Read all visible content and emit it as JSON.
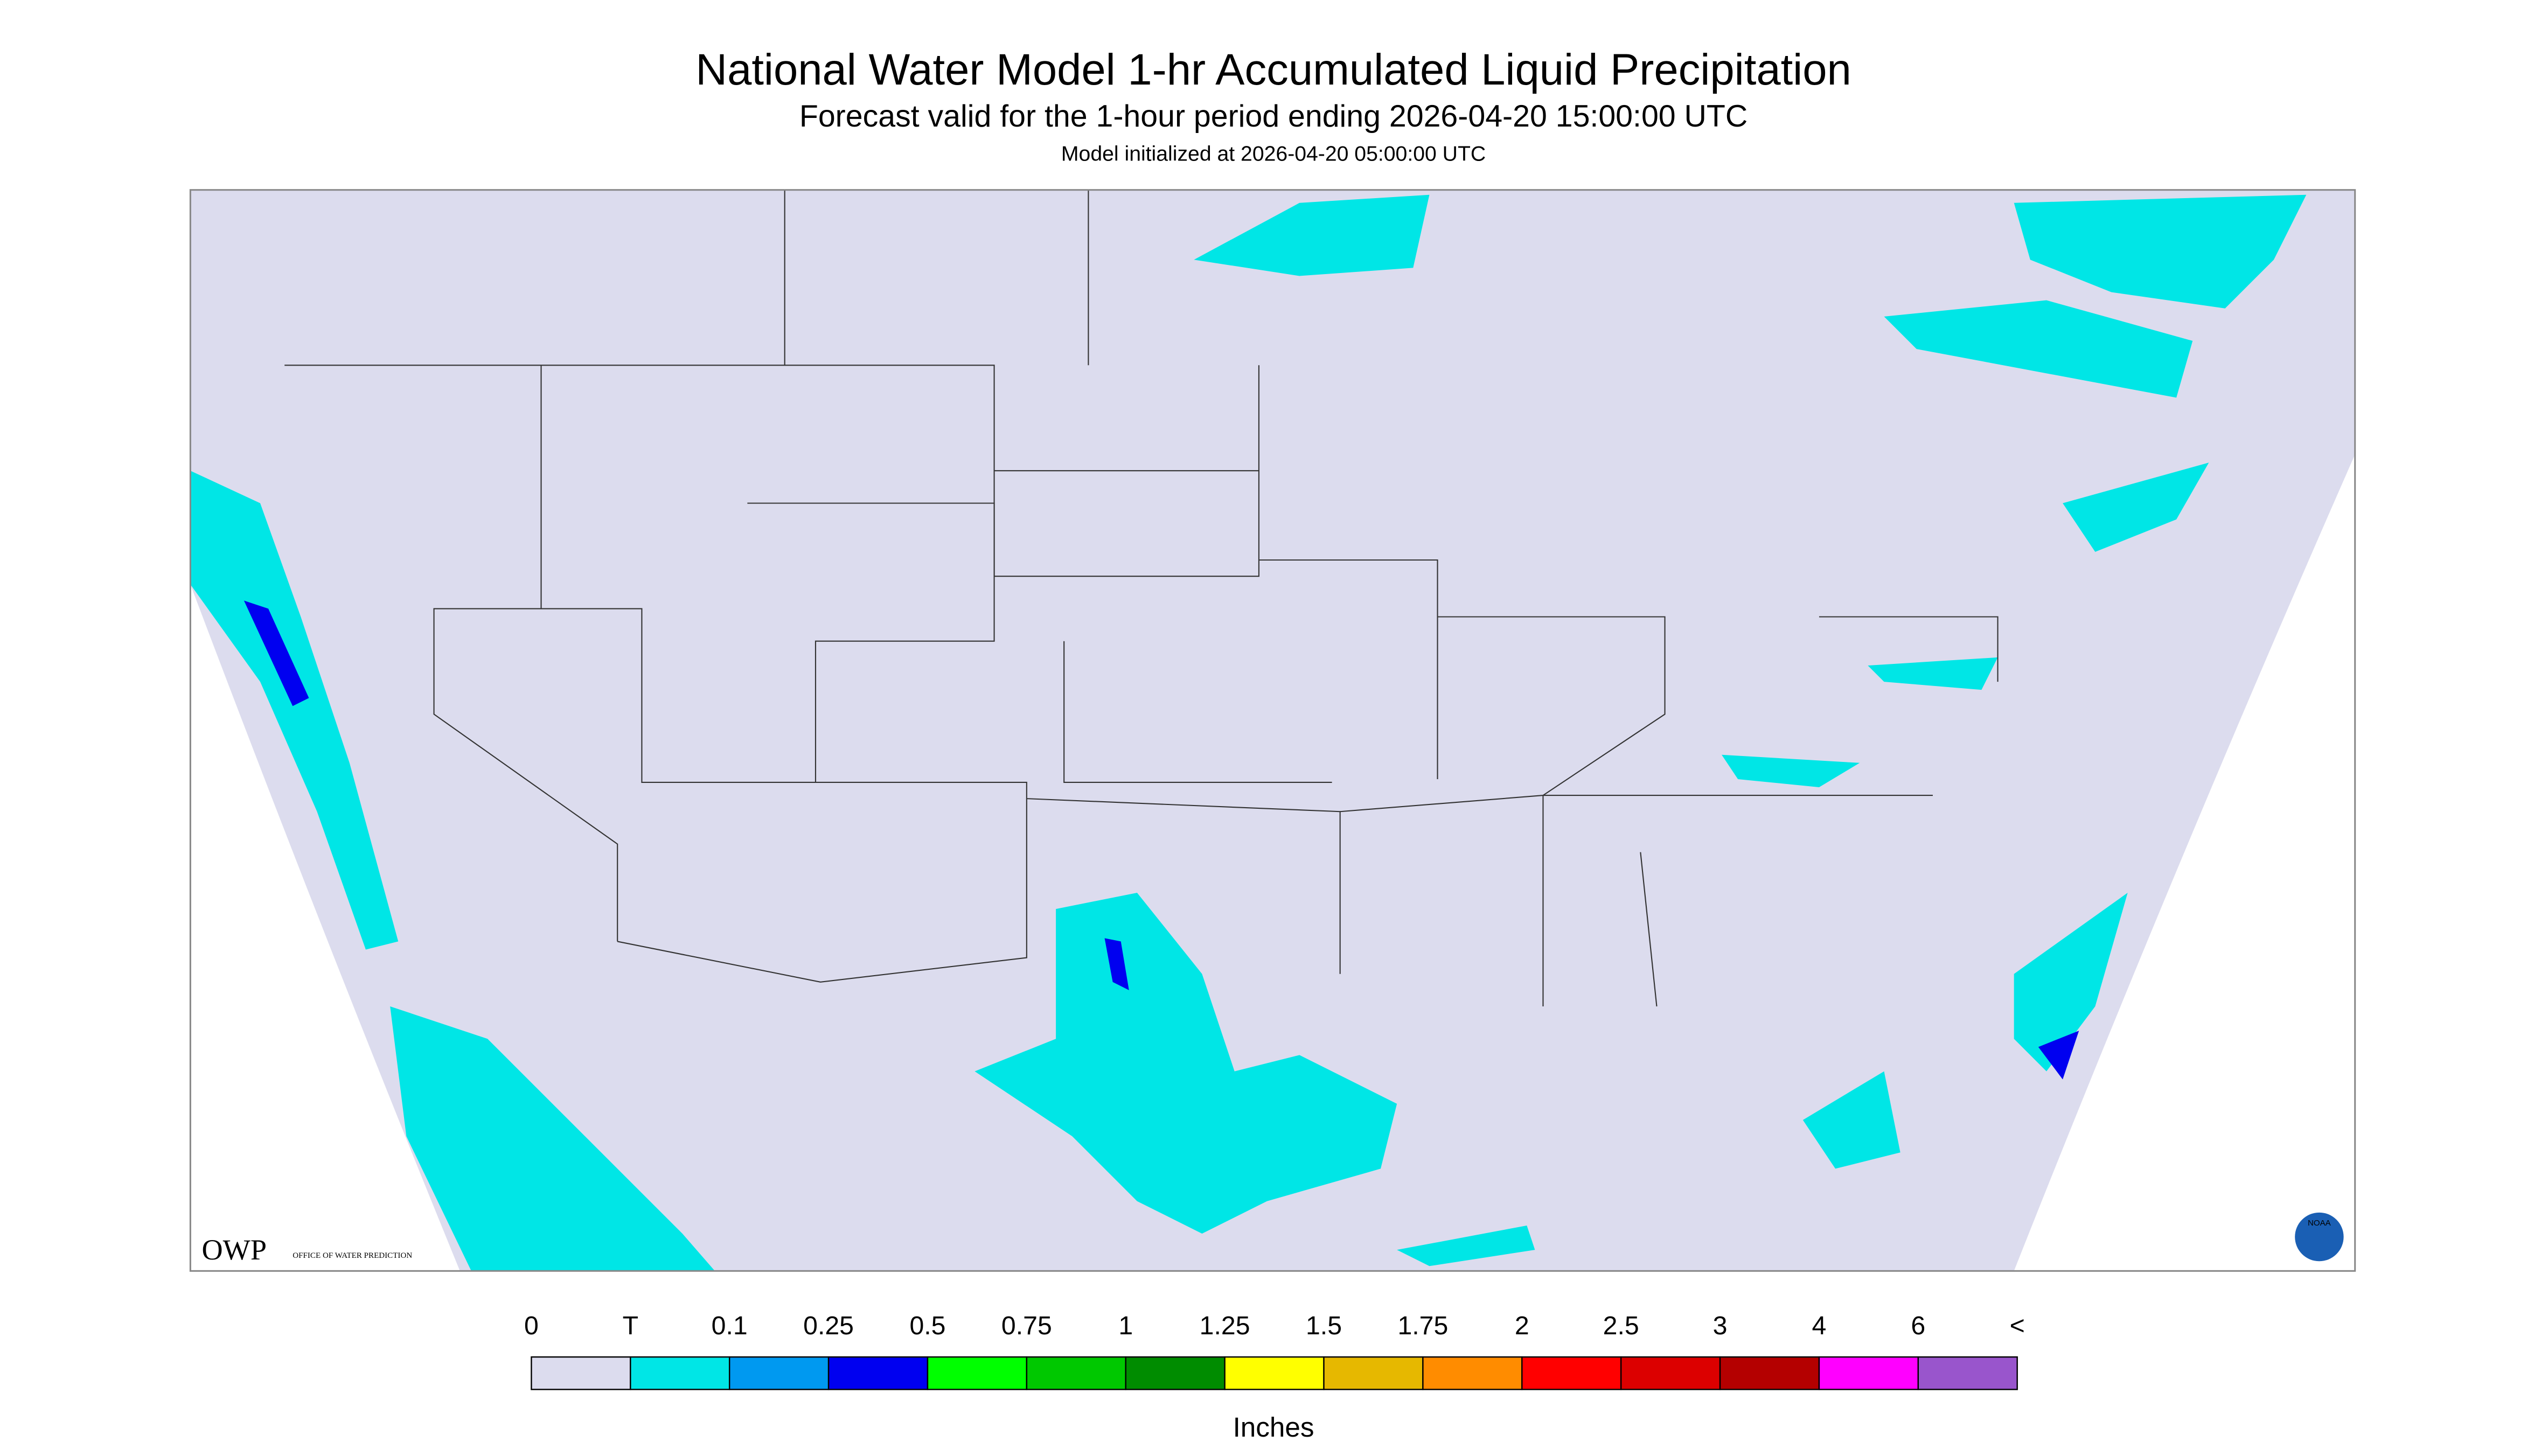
{
  "header": {
    "title": "National Water Model 1-hr Accumulated Liquid Precipitation",
    "subtitle": "Forecast valid for the 1-hour period ending 2026-04-20 15:00:00 UTC",
    "note": "Model initialized at 2026-04-20 05:00:00 UTC"
  },
  "legend": {
    "labels": [
      "0",
      "T",
      "0.1",
      "0.25",
      "0.5",
      "0.75",
      "1",
      "1.25",
      "1.5",
      "1.75",
      "2",
      "2.5",
      "3",
      "4",
      "6",
      "<"
    ],
    "colors": [
      "#dcdcee",
      "#00e6e6",
      "#0099f0",
      "#0000f0",
      "#00ff00",
      "#00c800",
      "#008c00",
      "#ffff00",
      "#e6b800",
      "#ff8c00",
      "#ff0000",
      "#dc0000",
      "#b40000",
      "#ff00ff",
      "#9955cc"
    ],
    "units": "Inches"
  },
  "logos": {
    "owp": "OWP",
    "owp_text": "OFFICE OF WATER PREDICTION",
    "noaa": "NOAA"
  }
}
